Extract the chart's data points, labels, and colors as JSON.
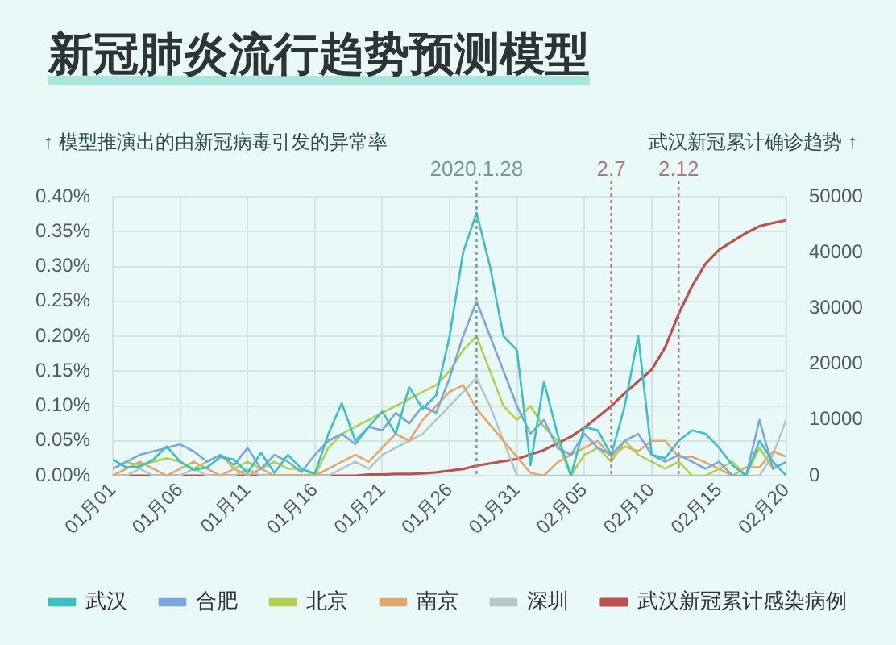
{
  "chart_data": {
    "type": "line",
    "title": "新冠肺炎流行趋势预测模型",
    "ylabel": "↑ 模型推演出的由新冠病毒引发的异常率",
    "y2label": "武汉新冠累计确诊趋势 ↑",
    "x": [
      "2020-01-01",
      "2020-01-02",
      "2020-01-03",
      "2020-01-04",
      "2020-01-05",
      "2020-01-06",
      "2020-01-07",
      "2020-01-08",
      "2020-01-09",
      "2020-01-10",
      "2020-01-11",
      "2020-01-12",
      "2020-01-13",
      "2020-01-14",
      "2020-01-15",
      "2020-01-16",
      "2020-01-17",
      "2020-01-18",
      "2020-01-19",
      "2020-01-20",
      "2020-01-21",
      "2020-01-22",
      "2020-01-23",
      "2020-01-24",
      "2020-01-25",
      "2020-01-26",
      "2020-01-27",
      "2020-01-28",
      "2020-01-29",
      "2020-01-30",
      "2020-01-31",
      "2020-02-01",
      "2020-02-02",
      "2020-02-03",
      "2020-02-04",
      "2020-02-05",
      "2020-02-06",
      "2020-02-07",
      "2020-02-08",
      "2020-02-09",
      "2020-02-10",
      "2020-02-11",
      "2020-02-12",
      "2020-02-13",
      "2020-02-14",
      "2020-02-15",
      "2020-02-16",
      "2020-02-17",
      "2020-02-18",
      "2020-02-19",
      "2020-02-20"
    ],
    "xlim": [
      "2020-01-01",
      "2020-02-20"
    ],
    "xticks": [
      {
        "value": "2020-01-01",
        "label": "01月01"
      },
      {
        "value": "2020-01-06",
        "label": "01月06"
      },
      {
        "value": "2020-01-11",
        "label": "01月11"
      },
      {
        "value": "2020-01-16",
        "label": "01月16"
      },
      {
        "value": "2020-01-21",
        "label": "01月21"
      },
      {
        "value": "2020-01-26",
        "label": "01月26"
      },
      {
        "value": "2020-01-31",
        "label": "01月31"
      },
      {
        "value": "2020-02-05",
        "label": "02月05"
      },
      {
        "value": "2020-02-10",
        "label": "02月10"
      },
      {
        "value": "2020-02-15",
        "label": "02月15"
      },
      {
        "value": "2020-02-20",
        "label": "02月20"
      }
    ],
    "ylim": [
      0,
      0.4
    ],
    "yticks": [
      {
        "value": 0,
        "label": "0.00%"
      },
      {
        "value": 0.05,
        "label": "0.05%"
      },
      {
        "value": 0.1,
        "label": "0.10%"
      },
      {
        "value": 0.15,
        "label": "0.15%"
      },
      {
        "value": 0.2,
        "label": "0.20%"
      },
      {
        "value": 0.25,
        "label": "0.25%"
      },
      {
        "value": 0.3,
        "label": "0.30%"
      },
      {
        "value": 0.35,
        "label": "0.35%"
      },
      {
        "value": 0.4,
        "label": "0.40%"
      }
    ],
    "y2lim": [
      0,
      50000
    ],
    "y2ticks": [
      0,
      10000,
      20000,
      30000,
      40000,
      50000
    ],
    "series": [
      {
        "name": "武汉",
        "color": "#3dbfc3",
        "values": [
          0.023,
          0.012,
          0.013,
          0.023,
          0.042,
          0.02,
          0.008,
          0.012,
          0.027,
          0.023,
          0.004,
          0.033,
          0.004,
          0.03,
          0.01,
          0.003,
          0.06,
          0.104,
          0.05,
          0.07,
          0.092,
          0.06,
          0.127,
          0.096,
          0.115,
          0.2,
          0.32,
          0.377,
          0.3,
          0.2,
          0.18,
          0.015,
          0.135,
          0.06,
          0.0,
          0.07,
          0.065,
          0.03,
          0.1,
          0.2,
          0.03,
          0.025,
          0.05,
          0.065,
          0.06,
          0.04,
          0.015,
          0.0,
          0.05,
          0.02,
          0.0
        ]
      },
      {
        "name": "合肥",
        "color": "#7ba7db",
        "values": [
          0.01,
          0.02,
          0.03,
          0.035,
          0.04,
          0.045,
          0.035,
          0.02,
          0.03,
          0.015,
          0.04,
          0.01,
          0.03,
          0.02,
          0.005,
          0.03,
          0.05,
          0.06,
          0.045,
          0.07,
          0.065,
          0.09,
          0.075,
          0.1,
          0.09,
          0.14,
          0.2,
          0.25,
          0.2,
          0.15,
          0.1,
          0.06,
          0.08,
          0.04,
          0.03,
          0.06,
          0.04,
          0.03,
          0.05,
          0.06,
          0.03,
          0.02,
          0.03,
          0.02,
          0.01,
          0.02,
          0.0,
          0.0,
          0.08,
          0.01,
          0.02
        ]
      },
      {
        "name": "北京",
        "color": "#b5cf4f",
        "values": [
          0.01,
          0.02,
          0.015,
          0.02,
          0.025,
          0.02,
          0.01,
          0.02,
          0.03,
          0.01,
          0.02,
          0.01,
          0.02,
          0.01,
          0.01,
          0.0,
          0.04,
          0.06,
          0.07,
          0.08,
          0.09,
          0.1,
          0.11,
          0.12,
          0.13,
          0.15,
          0.18,
          0.2,
          0.15,
          0.1,
          0.08,
          0.1,
          0.07,
          0.05,
          0.0,
          0.03,
          0.04,
          0.02,
          0.05,
          0.03,
          0.02,
          0.01,
          0.02,
          0.0,
          0.0,
          0.01,
          0.02,
          0.0,
          0.04,
          0.01,
          0.02
        ]
      },
      {
        "name": "南京",
        "color": "#e3a76b",
        "values": [
          0.0,
          0.01,
          0.02,
          0.01,
          0.0,
          0.01,
          0.02,
          0.01,
          0.0,
          0.01,
          0.0,
          0.01,
          0.0,
          0.0,
          0.0,
          0.0,
          0.01,
          0.02,
          0.03,
          0.02,
          0.04,
          0.06,
          0.05,
          0.08,
          0.1,
          0.12,
          0.13,
          0.096,
          0.073,
          0.05,
          0.027,
          0.004,
          0.0,
          0.019,
          0.03,
          0.04,
          0.05,
          0.027,
          0.042,
          0.035,
          0.05,
          0.05,
          0.027,
          0.027,
          0.019,
          0.01,
          0.0,
          0.012,
          0.012,
          0.035,
          0.027
        ]
      },
      {
        "name": "深圳",
        "color": "#b9c6c6",
        "values": [
          0.0,
          0.0,
          0.01,
          0.0,
          0.0,
          0.0,
          0.01,
          0.0,
          0.0,
          0.0,
          0.01,
          0.0,
          0.0,
          0.0,
          0.0,
          0.0,
          0.0,
          0.01,
          0.02,
          0.01,
          0.03,
          0.04,
          0.05,
          0.06,
          0.08,
          0.1,
          0.12,
          0.14,
          0.1,
          0.05,
          0.0,
          0.0,
          0.0,
          0.0,
          0.0,
          0.0,
          0.0,
          0.0,
          0.0,
          0.0,
          0.0,
          0.0,
          0.0,
          0.0,
          0.0,
          0.0,
          0.0,
          0.0,
          0.0,
          0.03,
          0.081
        ]
      },
      {
        "name": "武汉新冠累计感染病例",
        "color": "#c0504d",
        "axis": "y2",
        "values": [
          0,
          0,
          0,
          0,
          0,
          0,
          0,
          0,
          0,
          0,
          0,
          0,
          0,
          0,
          0,
          0,
          0,
          0,
          0,
          200,
          200,
          300,
          300,
          400,
          600,
          900,
          1200,
          1800,
          2200,
          2600,
          3000,
          3800,
          4600,
          5800,
          7000,
          8600,
          10500,
          12500,
          14800,
          16900,
          19000,
          23000,
          29000,
          34000,
          38000,
          40500,
          42000,
          43500,
          44700,
          45300,
          45800
        ]
      }
    ],
    "ref_lines": [
      {
        "axis": "x",
        "value": "2020-01-28",
        "label": "2020.1.28",
        "color": "#6f9c94",
        "line_style": "dotted"
      },
      {
        "axis": "x",
        "value": "2020-02-07",
        "label": "2.7",
        "color": "#a57c80",
        "line_style": "dotted"
      },
      {
        "axis": "x",
        "value": "2020-02-12",
        "label": "2.12",
        "color": "#a57c80",
        "line_style": "dotted"
      }
    ],
    "grid": true,
    "legend": "bottom",
    "marker": "none"
  }
}
